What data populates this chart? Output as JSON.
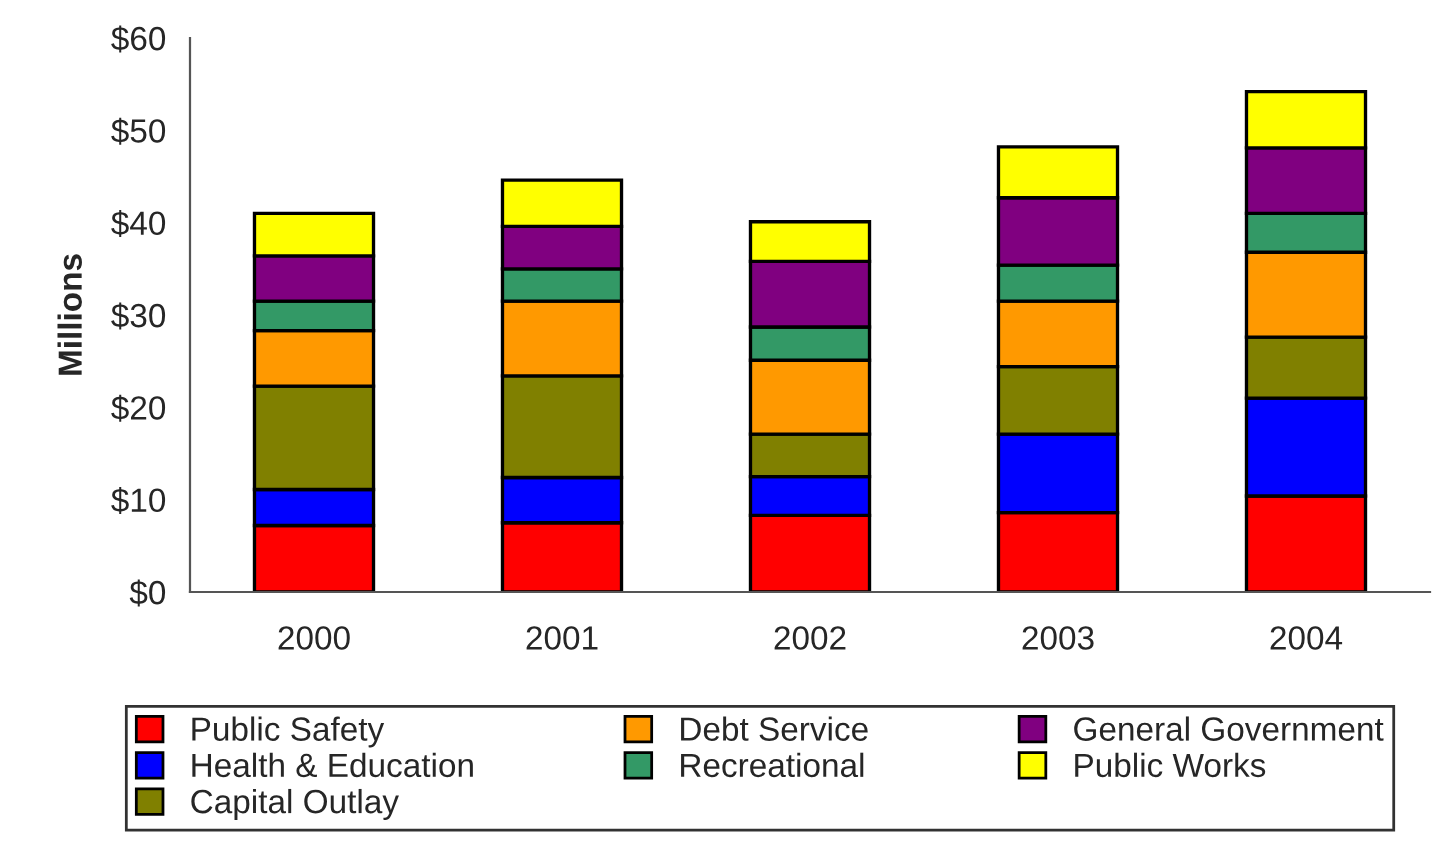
{
  "chart_data": {
    "type": "bar",
    "stacked": true,
    "ylabel": "Millions",
    "categories": [
      "2000",
      "2001",
      "2002",
      "2003",
      "2004"
    ],
    "series": [
      {
        "name": "Public Safety",
        "color": "#ff0000",
        "values": [
          7.2,
          7.5,
          8.3,
          8.6,
          10.4
        ]
      },
      {
        "name": "Health & Education",
        "color": "#0000ff",
        "values": [
          3.9,
          4.9,
          4.2,
          8.5,
          10.6
        ]
      },
      {
        "name": "Capital Outlay",
        "color": "#808000",
        "values": [
          11.2,
          11.0,
          4.6,
          7.3,
          6.6
        ]
      },
      {
        "name": "Debt Service",
        "color": "#ff9900",
        "values": [
          6.0,
          8.1,
          8.0,
          7.1,
          9.2
        ]
      },
      {
        "name": "Recreational",
        "color": "#339966",
        "values": [
          3.2,
          3.5,
          3.6,
          3.9,
          4.2
        ]
      },
      {
        "name": "General Government",
        "color": "#800080",
        "values": [
          4.9,
          4.6,
          7.1,
          7.3,
          7.1
        ]
      },
      {
        "name": "Public Works",
        "color": "#ffff00",
        "values": [
          4.6,
          5.0,
          4.3,
          5.5,
          6.1
        ]
      }
    ],
    "ylim": [
      0,
      60
    ],
    "yticks": [
      {
        "value": 0,
        "label": "$0"
      },
      {
        "value": 10,
        "label": "$10"
      },
      {
        "value": 20,
        "label": "$20"
      },
      {
        "value": 30,
        "label": "$30"
      },
      {
        "value": 40,
        "label": "$40"
      },
      {
        "value": 50,
        "label": "$50"
      },
      {
        "value": 60,
        "label": "$60"
      }
    ],
    "grid": false,
    "legend": "bottom"
  }
}
